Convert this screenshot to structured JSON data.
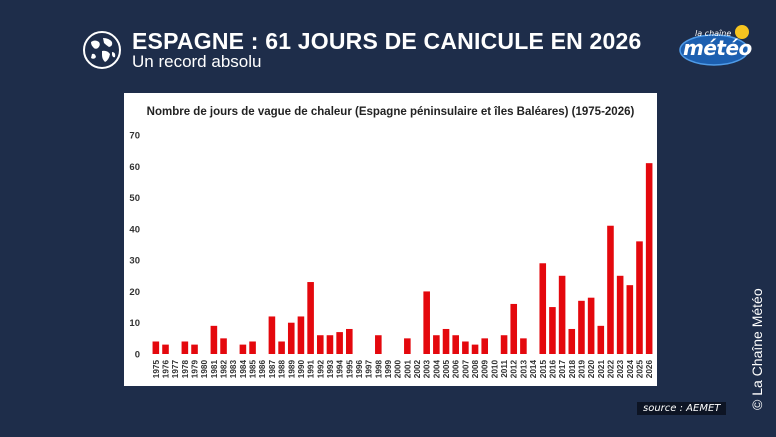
{
  "header": {
    "title": "ESPAGNE : 61 JOURS DE CANICULE EN 2026",
    "subtitle": "Un record absolu"
  },
  "logo": {
    "small_text": "la chaîne",
    "big_text": "météo",
    "sun_color": "#f7c520"
  },
  "icons": {
    "globe": "globe-icon"
  },
  "colors": {
    "background": "#1e2d4a",
    "bar": "#e4080d",
    "panel": "#ffffff"
  },
  "chart_data": {
    "type": "bar",
    "title": "Nombre de jours de vague de chaleur (Espagne péninsulaire et îles Baléares) (1975-2026)",
    "xlabel": "",
    "ylabel": "",
    "ylim": [
      0,
      70
    ],
    "yticks": [
      0,
      10,
      20,
      30,
      40,
      50,
      60,
      70
    ],
    "grid": false,
    "legend": "none",
    "categories": [
      "1975",
      "1976",
      "1977",
      "1978",
      "1979",
      "1980",
      "1981",
      "1982",
      "1983",
      "1984",
      "1985",
      "1986",
      "1987",
      "1988",
      "1989",
      "1990",
      "1991",
      "1992",
      "1993",
      "1994",
      "1995",
      "1996",
      "1997",
      "1998",
      "1999",
      "2000",
      "2001",
      "2002",
      "2003",
      "2004",
      "2005",
      "2006",
      "2007",
      "2008",
      "2009",
      "2010",
      "2011",
      "2012",
      "2013",
      "2014",
      "2015",
      "2016",
      "2017",
      "2018",
      "2019",
      "2020",
      "2021",
      "2022",
      "2023",
      "2024",
      "2025",
      "2026"
    ],
    "values": [
      4,
      3,
      0,
      4,
      3,
      0,
      9,
      5,
      0,
      3,
      4,
      0,
      12,
      4,
      10,
      12,
      23,
      6,
      6,
      7,
      8,
      0,
      0,
      6,
      0,
      0,
      5,
      0,
      20,
      6,
      8,
      6,
      4,
      3,
      5,
      0,
      6,
      16,
      5,
      0,
      29,
      15,
      25,
      8,
      17,
      18,
      9,
      41,
      25,
      22,
      36,
      61
    ]
  },
  "source": "source : AEMET",
  "credit": "© La Chaîne Météo"
}
